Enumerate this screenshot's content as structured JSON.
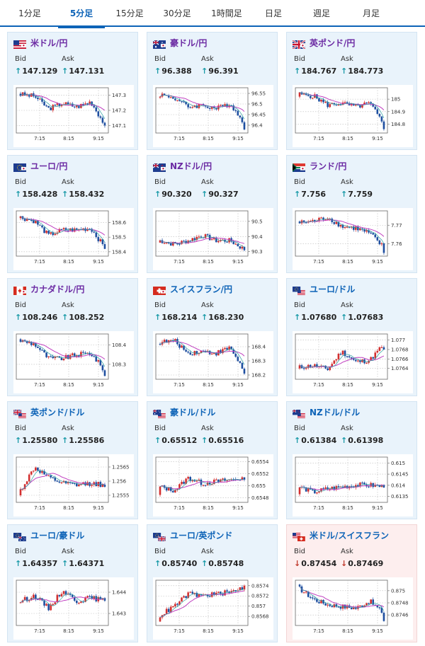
{
  "tabs": [
    {
      "label": "1分足",
      "active": false
    },
    {
      "label": "5分足",
      "active": true
    },
    {
      "label": "15分足",
      "active": false
    },
    {
      "label": "30分足",
      "active": false
    },
    {
      "label": "1時間足",
      "active": false
    },
    {
      "label": "日足",
      "active": false
    },
    {
      "label": "週足",
      "active": false
    },
    {
      "label": "月足",
      "active": false
    }
  ],
  "labels": {
    "bid": "Bid",
    "ask": "Ask",
    "up": "↑",
    "down": "↓"
  },
  "colors": {
    "accent": "#0d63b7",
    "up_arrow": "#1a9aa8",
    "down_arrow": "#c0392b",
    "candle_up": "#d32f2f",
    "candle_down": "#1f4fa0",
    "ma_line": "#c040c0",
    "ma_short": "#2aa0a0"
  },
  "pairs": [
    {
      "name": "米ドル/円",
      "flag": "us-flag",
      "name_color": "purple",
      "direction": "up",
      "bid": "147.129",
      "ask": "147.131",
      "chart_data": {
        "type": "candlestick",
        "x_ticks": [
          "7:15",
          "8:15",
          "9:15"
        ],
        "y_ticks": [
          "147.3",
          "147.2",
          "147.1"
        ],
        "ylim": [
          147.06,
          147.34
        ],
        "open": 147.31,
        "close": 147.1,
        "profile": [
          0.95,
          0.9,
          0.55,
          0.7,
          0.6,
          0.75,
          0.1
        ]
      }
    },
    {
      "name": "豪ドル/円",
      "flag": "au-flag",
      "name_color": "purple",
      "direction": "up",
      "bid": "96.388",
      "ask": "96.391",
      "chart_data": {
        "type": "candlestick",
        "x_ticks": [
          "7:15",
          "8:15",
          "9:15"
        ],
        "y_ticks": [
          "96.55",
          "96.5",
          "96.45",
          "96.4"
        ],
        "ylim": [
          96.37,
          96.57
        ],
        "open": 96.53,
        "close": 96.38,
        "profile": [
          0.95,
          0.85,
          0.6,
          0.65,
          0.55,
          0.7,
          0.1
        ]
      }
    },
    {
      "name": "英ポンド/円",
      "flag": "gb-flag",
      "name_color": "purple",
      "direction": "up",
      "bid": "184.767",
      "ask": "184.773",
      "chart_data": {
        "type": "candlestick",
        "x_ticks": [
          "7:15",
          "8:15",
          "9:15"
        ],
        "y_ticks": [
          "185",
          "184.9",
          "184.8"
        ],
        "ylim": [
          184.74,
          185.08
        ],
        "open": 185.02,
        "close": 184.76,
        "profile": [
          0.95,
          0.9,
          0.65,
          0.7,
          0.6,
          0.7,
          0.1
        ]
      }
    },
    {
      "name": "ユーロ/円",
      "flag": "eu-flag",
      "name_color": "purple",
      "direction": "up",
      "bid": "158.428",
      "ask": "158.432",
      "chart_data": {
        "type": "candlestick",
        "x_ticks": [
          "7:15",
          "8:15",
          "9:15"
        ],
        "y_ticks": [
          "158.6",
          "158.5",
          "158.4"
        ],
        "ylim": [
          158.38,
          158.67
        ],
        "open": 158.63,
        "close": 158.42,
        "profile": [
          0.95,
          0.85,
          0.45,
          0.6,
          0.6,
          0.65,
          0.1
        ]
      }
    },
    {
      "name": "NZドル/円",
      "flag": "nz-flag",
      "name_color": "purple",
      "direction": "up",
      "bid": "90.320",
      "ask": "90.327",
      "chart_data": {
        "type": "candlestick",
        "x_ticks": [
          "7:15",
          "8:15",
          "9:15"
        ],
        "y_ticks": [
          "90.5",
          "90.4",
          "90.3"
        ],
        "ylim": [
          90.28,
          90.56
        ],
        "open": 90.36,
        "close": 90.31,
        "profile": [
          0.3,
          0.2,
          0.3,
          0.45,
          0.3,
          0.3,
          0.05
        ]
      }
    },
    {
      "name": "ランド/円",
      "flag": "za-flag",
      "name_color": "purple",
      "direction": "up",
      "bid": "7.756",
      "ask": "7.759",
      "chart_data": {
        "type": "candlestick",
        "x_ticks": [
          "7:15",
          "8:15",
          "9:15"
        ],
        "y_ticks": [
          "7.77",
          "7.76"
        ],
        "ylim": [
          7.754,
          7.777
        ],
        "open": 7.772,
        "close": 7.755,
        "profile": [
          0.8,
          0.85,
          0.95,
          0.7,
          0.65,
          0.5,
          0.1
        ]
      }
    },
    {
      "name": "カナダドル/円",
      "flag": "ca-flag",
      "name_color": "purple",
      "direction": "up",
      "bid": "108.246",
      "ask": "108.252",
      "chart_data": {
        "type": "candlestick",
        "x_ticks": [
          "7:15",
          "8:15",
          "9:15"
        ],
        "y_ticks": [
          "108.4",
          "108.3"
        ],
        "ylim": [
          108.23,
          108.45
        ],
        "open": 108.43,
        "close": 108.24,
        "profile": [
          0.95,
          0.85,
          0.45,
          0.45,
          0.55,
          0.6,
          0.1
        ]
      }
    },
    {
      "name": "スイスフラン/円",
      "flag": "ch-flag",
      "name_color": "blue",
      "direction": "up",
      "bid": "168.214",
      "ask": "168.230",
      "chart_data": {
        "type": "candlestick",
        "x_ticks": [
          "7:15",
          "8:15",
          "9:15"
        ],
        "y_ticks": [
          "168.4",
          "168.3",
          "168.2"
        ],
        "ylim": [
          168.18,
          168.48
        ],
        "open": 168.42,
        "close": 168.21,
        "profile": [
          0.9,
          0.95,
          0.6,
          0.65,
          0.6,
          0.75,
          0.1
        ]
      }
    },
    {
      "name": "ユーロ/ドル",
      "flag": "eu-us-flag",
      "name_color": "blue",
      "direction": "up",
      "bid": "1.07680",
      "ask": "1.07683",
      "chart_data": {
        "type": "candlestick",
        "x_ticks": [
          "7:15",
          "8:15",
          "9:15"
        ],
        "y_ticks": [
          "1.077",
          "1.0768",
          "1.0766",
          "1.0764"
        ],
        "ylim": [
          1.0762,
          1.0771
        ],
        "open": 1.0764,
        "close": 1.0768,
        "profile": [
          0.2,
          0.25,
          0.15,
          0.65,
          0.35,
          0.4,
          0.85
        ]
      }
    },
    {
      "name": "英ポンド/ドル",
      "flag": "gb-us-flag",
      "name_color": "blue",
      "direction": "up",
      "bid": "1.25580",
      "ask": "1.25586",
      "chart_data": {
        "type": "candlestick",
        "x_ticks": [
          "7:15",
          "8:15",
          "9:15"
        ],
        "y_ticks": [
          "1.2565",
          "1.256",
          "1.2555"
        ],
        "ylim": [
          1.2553,
          1.2568
        ],
        "open": 1.2555,
        "close": 1.2558,
        "profile": [
          0.2,
          0.85,
          0.55,
          0.4,
          0.35,
          0.4,
          0.35
        ]
      }
    },
    {
      "name": "豪ドル/ドル",
      "flag": "au-us-flag",
      "name_color": "blue",
      "direction": "up",
      "bid": "0.65512",
      "ask": "0.65516",
      "chart_data": {
        "type": "candlestick",
        "x_ticks": [
          "7:15",
          "8:15",
          "9:15"
        ],
        "y_ticks": [
          "0.6554",
          "0.6552",
          "0.655",
          "0.6548"
        ],
        "ylim": [
          0.65475,
          0.65545
        ],
        "open": 0.65485,
        "close": 0.6551,
        "profile": [
          0.3,
          0.2,
          0.55,
          0.4,
          0.45,
          0.5,
          0.55
        ]
      }
    },
    {
      "name": "NZドル/ドル",
      "flag": "nz-us-flag",
      "name_color": "blue",
      "direction": "up",
      "bid": "0.61384",
      "ask": "0.61398",
      "chart_data": {
        "type": "candlestick",
        "x_ticks": [
          "7:15",
          "8:15",
          "9:15"
        ],
        "y_ticks": [
          "0.615",
          "0.6145",
          "0.614",
          "0.6135"
        ],
        "ylim": [
          0.6133,
          0.6152
        ],
        "open": 0.6136,
        "close": 0.6139,
        "profile": [
          0.3,
          0.15,
          0.25,
          0.3,
          0.35,
          0.35,
          0.3
        ]
      }
    },
    {
      "name": "ユーロ/豪ドル",
      "flag": "eu-au-flag",
      "name_color": "blue",
      "direction": "up",
      "bid": "1.64357",
      "ask": "1.64371",
      "chart_data": {
        "type": "candlestick",
        "x_ticks": [
          "7:15",
          "8:15",
          "9:15"
        ],
        "y_ticks": [
          "1.644",
          "1.643"
        ],
        "ylim": [
          1.6425,
          1.6445
        ],
        "open": 1.6435,
        "close": 1.6436,
        "profile": [
          0.55,
          0.7,
          0.35,
          0.85,
          0.55,
          0.65,
          0.55
        ]
      }
    },
    {
      "name": "ユーロ/英ポンド",
      "flag": "eu-gb-flag",
      "name_color": "blue",
      "direction": "up",
      "bid": "0.85740",
      "ask": "0.85748",
      "chart_data": {
        "type": "candlestick",
        "x_ticks": [
          "7:15",
          "8:15",
          "9:15"
        ],
        "y_ticks": [
          "0.8574",
          "0.8572",
          "0.857",
          "0.8568"
        ],
        "ylim": [
          0.85665,
          0.85748
        ],
        "open": 0.8567,
        "close": 0.8574,
        "profile": [
          0.15,
          0.4,
          0.75,
          0.7,
          0.75,
          0.8,
          0.95
        ]
      }
    },
    {
      "name": "米ドル/スイスフラン",
      "flag": "us-ch-flag",
      "name_color": "blue",
      "direction": "down",
      "bid": "0.87454",
      "ask": "0.87469",
      "chart_data": {
        "type": "candlestick",
        "x_ticks": [
          "7:15",
          "8:15",
          "9:15"
        ],
        "y_ticks": [
          "0.875",
          "0.8748",
          "0.8746"
        ],
        "ylim": [
          0.87445,
          0.87515
        ],
        "open": 0.8751,
        "close": 0.8745,
        "profile": [
          0.9,
          0.6,
          0.45,
          0.4,
          0.35,
          0.55,
          0.2
        ]
      }
    }
  ]
}
